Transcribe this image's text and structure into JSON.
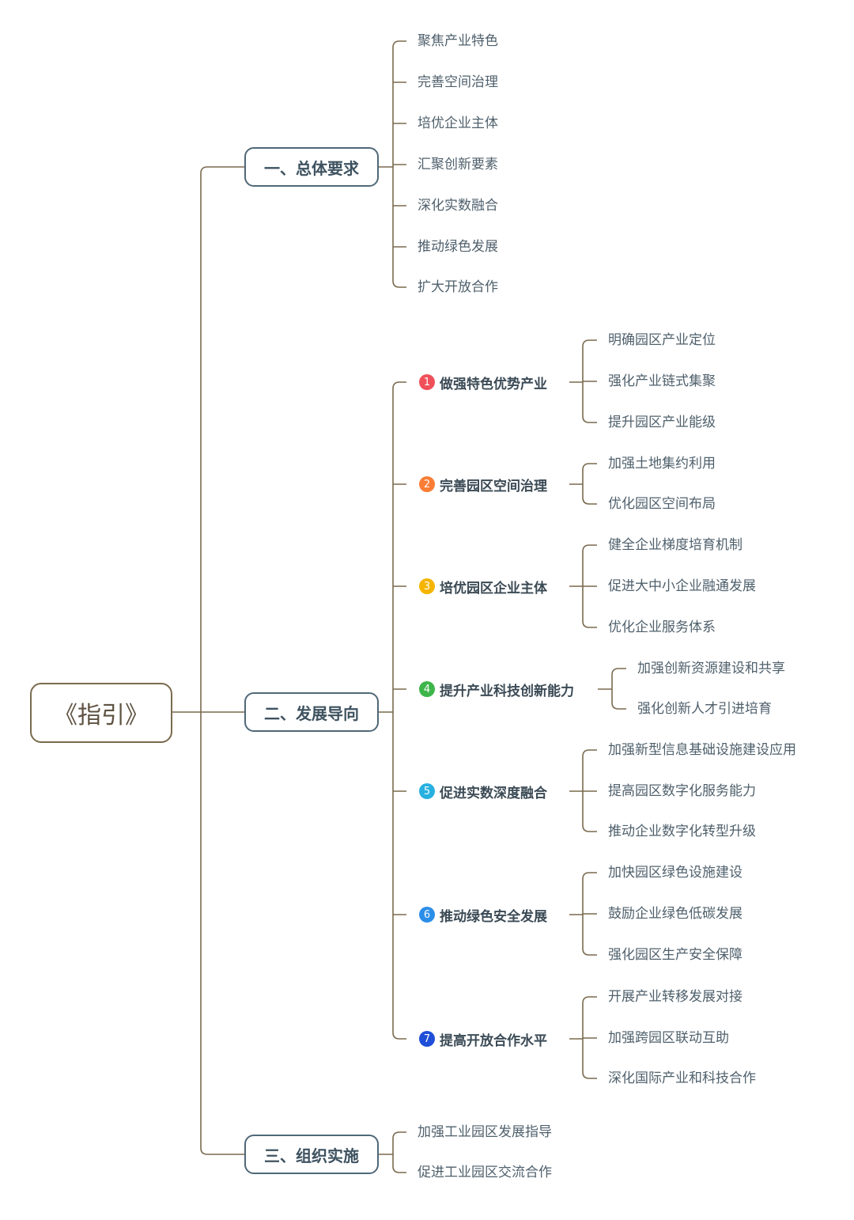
{
  "colors": {
    "line": "#7a6a4e",
    "root_border": "#7a6a4e",
    "node_border": "#4f6878",
    "text": "#4f606c"
  },
  "root": {
    "label": "《指引》"
  },
  "sections": [
    {
      "label": "一、总体要求",
      "children": [
        {
          "label": "聚焦产业特色"
        },
        {
          "label": "完善空间治理"
        },
        {
          "label": "培优企业主体"
        },
        {
          "label": "汇聚创新要素"
        },
        {
          "label": "深化实数融合"
        },
        {
          "label": "推动绿色发展"
        },
        {
          "label": "扩大开放合作"
        }
      ]
    },
    {
      "label": "二、发展导向",
      "children": [
        {
          "num": "1",
          "badge_color": "#f0505a",
          "label": "做强特色优势产业",
          "children": [
            {
              "label": "明确园区产业定位"
            },
            {
              "label": "强化产业链式集聚"
            },
            {
              "label": "提升园区产业能级"
            }
          ]
        },
        {
          "num": "2",
          "badge_color": "#f97d35",
          "label": "完善园区空间治理",
          "children": [
            {
              "label": "加强土地集约利用"
            },
            {
              "label": "优化园区空间布局"
            }
          ]
        },
        {
          "num": "3",
          "badge_color": "#f5b400",
          "label": "培优园区企业主体",
          "children": [
            {
              "label": "健全企业梯度培育机制"
            },
            {
              "label": "促进大中小企业融通发展"
            },
            {
              "label": "优化企业服务体系"
            }
          ]
        },
        {
          "num": "4",
          "badge_color": "#3db54a",
          "label": "提升产业科技创新能力",
          "children": [
            {
              "label": "加强创新资源建设和共享"
            },
            {
              "label": "强化创新人才引进培育"
            }
          ]
        },
        {
          "num": "5",
          "badge_color": "#27b0e0",
          "label": "促进实数深度融合",
          "children": [
            {
              "label": "加强新型信息基础设施建设应用"
            },
            {
              "label": "提高园区数字化服务能力"
            },
            {
              "label": "推动企业数字化转型升级"
            }
          ]
        },
        {
          "num": "6",
          "badge_color": "#2b8ee8",
          "label": "推动绿色安全发展",
          "children": [
            {
              "label": "加快园区绿色设施建设"
            },
            {
              "label": "鼓励企业绿色低碳发展"
            },
            {
              "label": "强化园区生产安全保障"
            }
          ]
        },
        {
          "num": "7",
          "badge_color": "#1f4fd8",
          "label": "提高开放合作水平",
          "children": [
            {
              "label": "开展产业转移发展对接"
            },
            {
              "label": "加强跨园区联动互助"
            },
            {
              "label": "深化国际产业和科技合作"
            }
          ]
        }
      ]
    },
    {
      "label": "三、组织实施",
      "children": [
        {
          "label": "加强工业园区发展指导"
        },
        {
          "label": "促进工业园区交流合作"
        }
      ]
    }
  ]
}
